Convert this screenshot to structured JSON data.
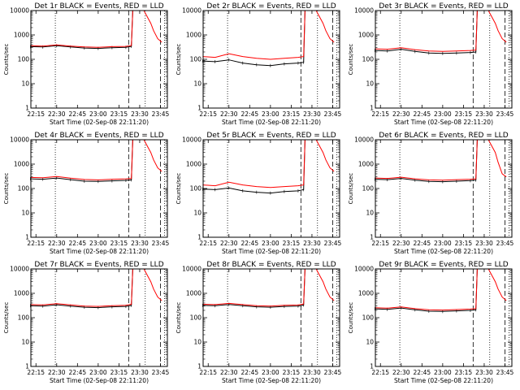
{
  "figure": {
    "background": "#ffffff",
    "axis_color": "#000000",
    "events_color": "#000000",
    "lld_color": "#ff0000"
  },
  "chart_data": [
    {
      "type": "line",
      "title": "Det 1r BLACK = Events, RED = LLD",
      "xlabel": "Start Time (02-Sep-08 22:11:20)",
      "ylabel": "Counts/sec",
      "x_ticks": [
        "22:15",
        "22:30",
        "22:45",
        "23:00",
        "23:15",
        "23:30",
        "23:45"
      ],
      "y_ticks": [
        "1",
        "10",
        "100",
        "1000",
        "10000"
      ],
      "y_scale": "log",
      "ylim": [
        1,
        10000
      ],
      "xlim": [
        "22:11:20",
        "23:50:00"
      ],
      "grid": false,
      "x": [
        "22:11",
        "22:20",
        "22:30",
        "22:40",
        "22:50",
        "23:00",
        "23:10",
        "23:20",
        "23:24",
        "23:25",
        "23:27",
        "23:33",
        "23:38",
        "23:40",
        "23:43",
        "23:46"
      ],
      "series": [
        {
          "values": [
            330,
            320,
            360,
            320,
            290,
            280,
            300,
            310,
            340,
            10000,
            10000,
            null,
            null,
            null,
            null,
            null
          ]
        },
        {
          "values": [
            360,
            350,
            390,
            350,
            320,
            310,
            330,
            340,
            370,
            10000,
            10000,
            10000,
            3000,
            1500,
            700,
            500
          ]
        }
      ],
      "vlines": [
        {
          "x": "22:29",
          "style": "dotted"
        },
        {
          "x": "23:22",
          "style": "dashed"
        },
        {
          "x": "23:34",
          "style": "dotted"
        },
        {
          "x": "23:45",
          "style": "dashed"
        },
        {
          "x": "23:48",
          "style": "dotted"
        }
      ]
    },
    {
      "type": "line",
      "title": "Det 2r BLACK = Events, RED = LLD",
      "xlabel": "Start Time (02-Sep-08 22:11:20)",
      "ylabel": "Counts/sec",
      "x_ticks": [
        "22:15",
        "22:30",
        "22:45",
        "23:00",
        "23:15",
        "23:30",
        "23:45"
      ],
      "y_ticks": [
        "1",
        "10",
        "100",
        "1000",
        "10000"
      ],
      "y_scale": "log",
      "ylim": [
        1,
        10000
      ],
      "xlim": [
        "22:11:20",
        "23:50:00"
      ],
      "grid": false,
      "x": [
        "22:11",
        "22:20",
        "22:30",
        "22:40",
        "22:50",
        "23:00",
        "23:10",
        "23:20",
        "23:24",
        "23:25",
        "23:27",
        "23:33",
        "23:38",
        "23:40",
        "23:43",
        "23:46"
      ],
      "series": [
        {
          "values": [
            85,
            80,
            95,
            70,
            60,
            55,
            65,
            70,
            75,
            10000,
            10000,
            null,
            null,
            null,
            null,
            null
          ]
        },
        {
          "values": [
            130,
            120,
            170,
            130,
            110,
            100,
            110,
            120,
            130,
            10000,
            10000,
            10000,
            3000,
            1500,
            700,
            500
          ]
        }
      ],
      "vlines": [
        {
          "x": "22:29",
          "style": "dotted"
        },
        {
          "x": "23:22",
          "style": "dashed"
        },
        {
          "x": "23:34",
          "style": "dotted"
        },
        {
          "x": "23:45",
          "style": "dashed"
        },
        {
          "x": "23:48",
          "style": "dotted"
        }
      ]
    },
    {
      "type": "line",
      "title": "Det 3r BLACK = Events, RED = LLD",
      "xlabel": "Start Time (02-Sep-08 22:11:20)",
      "ylabel": "Counts/sec",
      "x_ticks": [
        "22:15",
        "22:30",
        "22:45",
        "23:00",
        "23:15",
        "23:30",
        "23:45"
      ],
      "y_ticks": [
        "1",
        "10",
        "100",
        "1000",
        "10000"
      ],
      "y_scale": "log",
      "ylim": [
        1,
        10000
      ],
      "xlim": [
        "22:11:20",
        "23:50:00"
      ],
      "grid": false,
      "x": [
        "22:11",
        "22:20",
        "22:30",
        "22:40",
        "22:50",
        "23:00",
        "23:10",
        "23:20",
        "23:24",
        "23:25",
        "23:27",
        "23:33",
        "23:38",
        "23:40",
        "23:43",
        "23:46"
      ],
      "series": [
        {
          "values": [
            230,
            220,
            260,
            210,
            180,
            175,
            180,
            190,
            200,
            10000,
            10000,
            null,
            null,
            null,
            null,
            null
          ]
        },
        {
          "values": [
            270,
            260,
            300,
            250,
            220,
            210,
            220,
            230,
            240,
            10000,
            10000,
            10000,
            3000,
            1500,
            700,
            500
          ]
        }
      ],
      "vlines": [
        {
          "x": "22:29",
          "style": "dotted"
        },
        {
          "x": "23:22",
          "style": "dashed"
        },
        {
          "x": "23:34",
          "style": "dotted"
        },
        {
          "x": "23:45",
          "style": "dashed"
        },
        {
          "x": "23:48",
          "style": "dotted"
        }
      ]
    },
    {
      "type": "line",
      "title": "Det 4r BLACK = Events, RED = LLD",
      "xlabel": "Start Time (02-Sep-08 22:11:20)",
      "ylabel": "Counts/sec",
      "x_ticks": [
        "22:15",
        "22:30",
        "22:45",
        "23:00",
        "23:15",
        "23:30",
        "23:45"
      ],
      "y_ticks": [
        "1",
        "10",
        "100",
        "1000",
        "10000"
      ],
      "y_scale": "log",
      "ylim": [
        1,
        10000
      ],
      "xlim": [
        "22:11:20",
        "23:50:00"
      ],
      "grid": false,
      "x": [
        "22:11",
        "22:20",
        "22:30",
        "22:40",
        "22:50",
        "23:00",
        "23:10",
        "23:20",
        "23:24",
        "23:25",
        "23:27",
        "23:33",
        "23:38",
        "23:40",
        "23:43",
        "23:46"
      ],
      "series": [
        {
          "values": [
            250,
            240,
            270,
            230,
            200,
            195,
            205,
            215,
            225,
            10000,
            10000,
            null,
            null,
            null,
            null,
            null
          ]
        },
        {
          "values": [
            285,
            275,
            310,
            265,
            235,
            225,
            240,
            250,
            260,
            10000,
            10000,
            10000,
            3000,
            1500,
            700,
            500
          ]
        }
      ],
      "vlines": [
        {
          "x": "22:29",
          "style": "dotted"
        },
        {
          "x": "23:22",
          "style": "dashed"
        },
        {
          "x": "23:34",
          "style": "dotted"
        },
        {
          "x": "23:45",
          "style": "dashed"
        },
        {
          "x": "23:48",
          "style": "dotted"
        }
      ]
    },
    {
      "type": "line",
      "title": "Det 5r BLACK = Events, RED = LLD",
      "xlabel": "Start Time (02-Sep-08 22:11:20)",
      "ylabel": "Counts/sec",
      "x_ticks": [
        "22:15",
        "22:30",
        "22:45",
        "23:00",
        "23:15",
        "23:30",
        "23:45"
      ],
      "y_ticks": [
        "1",
        "10",
        "100",
        "1000",
        "10000"
      ],
      "y_scale": "log",
      "ylim": [
        1,
        10000
      ],
      "xlim": [
        "22:11:20",
        "23:50:00"
      ],
      "grid": false,
      "x": [
        "22:11",
        "22:20",
        "22:30",
        "22:40",
        "22:50",
        "23:00",
        "23:10",
        "23:20",
        "23:24",
        "23:25",
        "23:27",
        "23:33",
        "23:38",
        "23:40",
        "23:43",
        "23:46"
      ],
      "series": [
        {
          "values": [
            95,
            90,
            105,
            80,
            70,
            65,
            75,
            80,
            90,
            10000,
            10000,
            null,
            null,
            null,
            null,
            null
          ]
        },
        {
          "values": [
            140,
            130,
            180,
            140,
            120,
            110,
            120,
            130,
            140,
            10000,
            10000,
            10000,
            3000,
            1500,
            700,
            500
          ]
        }
      ],
      "vlines": [
        {
          "x": "22:29",
          "style": "dotted"
        },
        {
          "x": "23:22",
          "style": "dashed"
        },
        {
          "x": "23:34",
          "style": "dotted"
        },
        {
          "x": "23:45",
          "style": "dashed"
        },
        {
          "x": "23:48",
          "style": "dotted"
        }
      ]
    },
    {
      "type": "line",
      "title": "Det 6r BLACK = Events, RED = LLD",
      "xlabel": "Start Time (02-Sep-08 22:11:20)",
      "ylabel": "Counts/sec",
      "x_ticks": [
        "22:15",
        "22:30",
        "22:45",
        "23:00",
        "23:15",
        "23:30",
        "23:45"
      ],
      "y_ticks": [
        "1",
        "10",
        "100",
        "1000",
        "10000"
      ],
      "y_scale": "log",
      "ylim": [
        1,
        10000
      ],
      "xlim": [
        "22:11:20",
        "23:50:00"
      ],
      "grid": false,
      "x": [
        "22:11",
        "22:20",
        "22:30",
        "22:40",
        "22:50",
        "23:00",
        "23:10",
        "23:20",
        "23:24",
        "23:25",
        "23:27",
        "23:33",
        "23:38",
        "23:40",
        "23:43",
        "23:46"
      ],
      "series": [
        {
          "values": [
            240,
            230,
            260,
            220,
            195,
            190,
            200,
            210,
            220,
            10000,
            10000,
            null,
            null,
            null,
            null,
            null
          ]
        },
        {
          "values": [
            270,
            260,
            290,
            250,
            225,
            220,
            230,
            240,
            250,
            10000,
            10000,
            10000,
            3000,
            1200,
            400,
            300
          ]
        }
      ],
      "vlines": [
        {
          "x": "22:29",
          "style": "dotted"
        },
        {
          "x": "23:22",
          "style": "dashed"
        },
        {
          "x": "23:34",
          "style": "dotted"
        },
        {
          "x": "23:45",
          "style": "dashed"
        },
        {
          "x": "23:48",
          "style": "dotted"
        }
      ]
    },
    {
      "type": "line",
      "title": "Det 7r BLACK = Events, RED = LLD",
      "xlabel": "Start Time (02-Sep-08 22:11:20)",
      "ylabel": "Counts/sec",
      "x_ticks": [
        "22:15",
        "22:30",
        "22:45",
        "23:00",
        "23:15",
        "23:30",
        "23:45"
      ],
      "y_ticks": [
        "1",
        "10",
        "100",
        "1000",
        "10000"
      ],
      "y_scale": "log",
      "ylim": [
        1,
        10000
      ],
      "xlim": [
        "22:11:20",
        "23:50:00"
      ],
      "grid": false,
      "x": [
        "22:11",
        "22:20",
        "22:30",
        "22:40",
        "22:50",
        "23:00",
        "23:10",
        "23:20",
        "23:24",
        "23:25",
        "23:27",
        "23:33",
        "23:38",
        "23:40",
        "23:43",
        "23:46"
      ],
      "series": [
        {
          "values": [
            310,
            300,
            340,
            300,
            270,
            260,
            280,
            290,
            320,
            10000,
            10000,
            null,
            null,
            null,
            null,
            null
          ]
        },
        {
          "values": [
            345,
            335,
            375,
            335,
            300,
            290,
            310,
            320,
            355,
            10000,
            10000,
            10000,
            3000,
            1500,
            700,
            500
          ]
        }
      ],
      "vlines": [
        {
          "x": "22:29",
          "style": "dotted"
        },
        {
          "x": "23:22",
          "style": "dashed"
        },
        {
          "x": "23:34",
          "style": "dotted"
        },
        {
          "x": "23:45",
          "style": "dashed"
        },
        {
          "x": "23:48",
          "style": "dotted"
        }
      ]
    },
    {
      "type": "line",
      "title": "Det 8r BLACK = Events, RED = LLD",
      "xlabel": "Start Time (02-Sep-08 22:11:20)",
      "ylabel": "Counts/sec",
      "x_ticks": [
        "22:15",
        "22:30",
        "22:45",
        "23:00",
        "23:15",
        "23:30",
        "23:45"
      ],
      "y_ticks": [
        "1",
        "10",
        "100",
        "1000",
        "10000"
      ],
      "y_scale": "log",
      "ylim": [
        1,
        10000
      ],
      "xlim": [
        "22:11:20",
        "23:50:00"
      ],
      "grid": false,
      "x": [
        "22:11",
        "22:20",
        "22:30",
        "22:40",
        "22:50",
        "23:00",
        "23:10",
        "23:20",
        "23:24",
        "23:25",
        "23:27",
        "23:33",
        "23:38",
        "23:40",
        "23:43",
        "23:46"
      ],
      "series": [
        {
          "values": [
            320,
            310,
            350,
            310,
            280,
            270,
            290,
            300,
            330,
            10000,
            10000,
            null,
            null,
            null,
            null,
            null
          ]
        },
        {
          "values": [
            355,
            345,
            385,
            345,
            310,
            300,
            320,
            330,
            365,
            10000,
            10000,
            10000,
            3000,
            1500,
            700,
            500
          ]
        }
      ],
      "vlines": [
        {
          "x": "22:29",
          "style": "dotted"
        },
        {
          "x": "23:22",
          "style": "dashed"
        },
        {
          "x": "23:34",
          "style": "dotted"
        },
        {
          "x": "23:45",
          "style": "dashed"
        },
        {
          "x": "23:48",
          "style": "dotted"
        }
      ]
    },
    {
      "type": "line",
      "title": "Det 9r BLACK = Events, RED = LLD",
      "xlabel": "Start Time (02-Sep-08 22:11:20)",
      "ylabel": "Counts/sec",
      "x_ticks": [
        "22:15",
        "22:30",
        "22:45",
        "23:00",
        "23:15",
        "23:30",
        "23:45"
      ],
      "y_ticks": [
        "1",
        "10",
        "100",
        "1000",
        "10000"
      ],
      "y_scale": "log",
      "ylim": [
        1,
        10000
      ],
      "xlim": [
        "22:11:20",
        "23:50:00"
      ],
      "grid": false,
      "x": [
        "22:11",
        "22:20",
        "22:30",
        "22:40",
        "22:50",
        "23:00",
        "23:10",
        "23:20",
        "23:24",
        "23:25",
        "23:27",
        "23:33",
        "23:38",
        "23:40",
        "23:43",
        "23:46"
      ],
      "series": [
        {
          "values": [
            230,
            220,
            250,
            210,
            185,
            180,
            190,
            200,
            210,
            10000,
            10000,
            null,
            null,
            null,
            null,
            null
          ]
        },
        {
          "values": [
            255,
            245,
            275,
            235,
            210,
            205,
            215,
            225,
            235,
            10000,
            10000,
            10000,
            3000,
            1500,
            700,
            500
          ]
        }
      ],
      "vlines": [
        {
          "x": "22:29",
          "style": "dotted"
        },
        {
          "x": "23:22",
          "style": "dashed"
        },
        {
          "x": "23:34",
          "style": "dotted"
        },
        {
          "x": "23:45",
          "style": "dashed"
        },
        {
          "x": "23:48",
          "style": "dotted"
        }
      ]
    }
  ]
}
